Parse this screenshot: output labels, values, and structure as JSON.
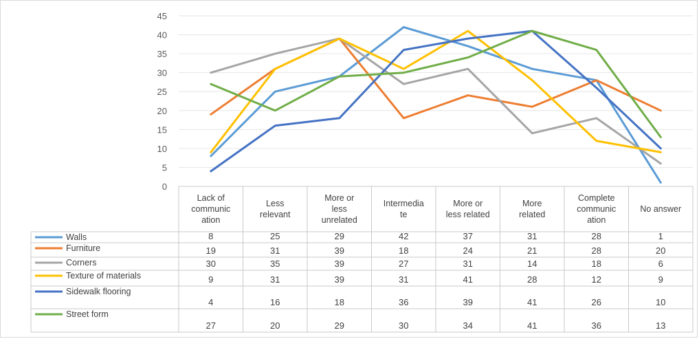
{
  "chart_data": {
    "type": "line",
    "title": "",
    "xlabel": "",
    "ylabel": "",
    "ylim": [
      0,
      45
    ],
    "y_ticks": [
      0,
      5,
      10,
      15,
      20,
      25,
      30,
      35,
      40,
      45
    ],
    "grid": true,
    "legend": "data-table-bottom",
    "categories": [
      "Lack of communication",
      "Less relevant",
      "More or less unrelated",
      "Intermediate",
      "More or less related",
      "More related",
      "Complete communication",
      "No answer"
    ],
    "category_label_lines": [
      [
        "Lack of",
        "communic",
        "ation"
      ],
      [
        "Less",
        "relevant"
      ],
      [
        "More or",
        "less",
        "unrelated"
      ],
      [
        "Intermedia",
        "te"
      ],
      [
        "More or",
        "less related"
      ],
      [
        "More",
        "related"
      ],
      [
        "Complete",
        "communic",
        "ation"
      ],
      [
        "No answer"
      ]
    ],
    "series": [
      {
        "name": "Walls",
        "color": "#5B9BD5",
        "values": [
          8,
          25,
          29,
          42,
          37,
          31,
          28,
          1
        ]
      },
      {
        "name": "Furniture",
        "color": "#ED7D31",
        "values": [
          19,
          31,
          39,
          18,
          24,
          21,
          28,
          20
        ]
      },
      {
        "name": "Corners",
        "color": "#A5A5A5",
        "values": [
          30,
          35,
          39,
          27,
          31,
          14,
          18,
          6
        ]
      },
      {
        "name": "Texture of materials",
        "color": "#FFC000",
        "values": [
          9,
          31,
          39,
          31,
          41,
          28,
          12,
          9
        ]
      },
      {
        "name": "Sidewalk flooring",
        "color": "#4472C4",
        "values": [
          4,
          16,
          18,
          36,
          39,
          41,
          26,
          10
        ]
      },
      {
        "name": "Street form",
        "color": "#70AD47",
        "values": [
          27,
          20,
          29,
          30,
          34,
          41,
          36,
          13
        ]
      }
    ]
  }
}
